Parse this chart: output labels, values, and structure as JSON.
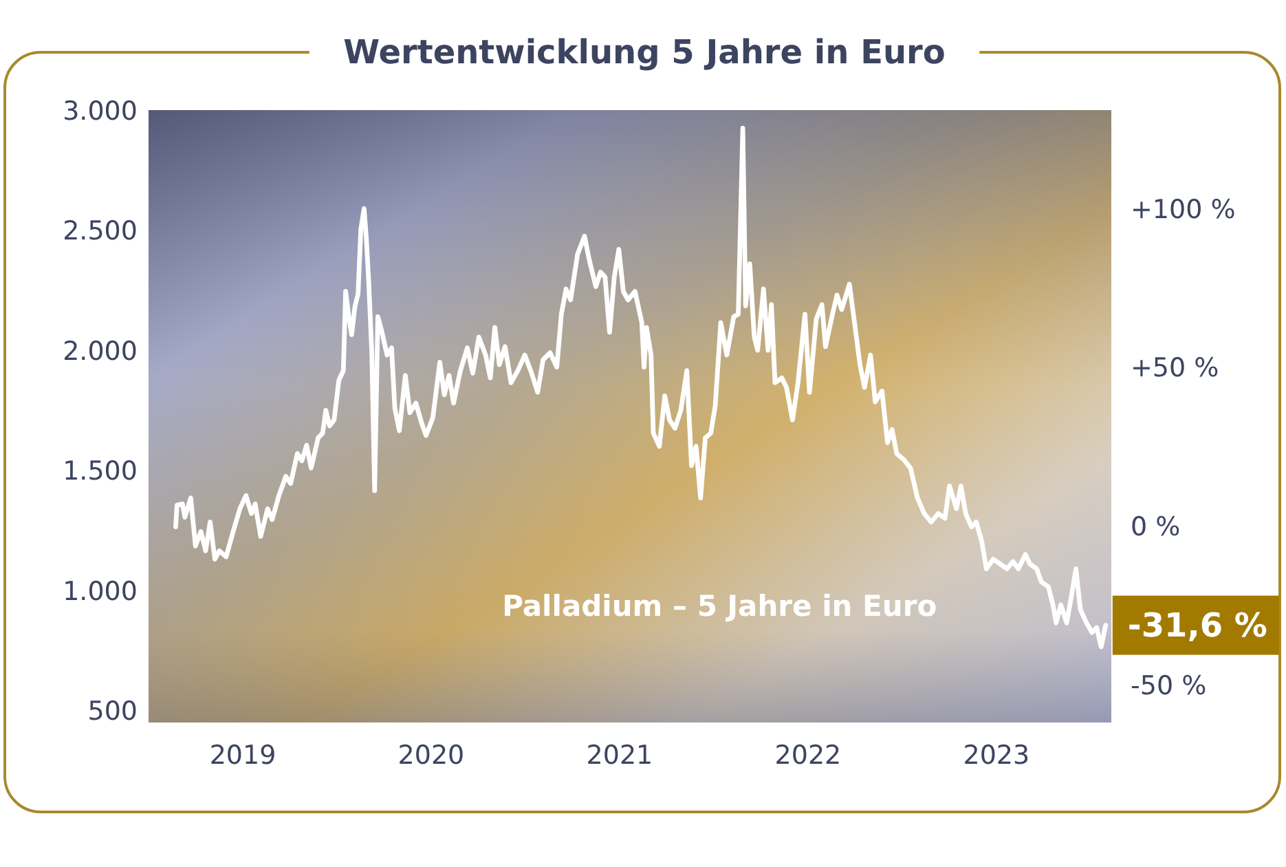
{
  "chart_data": {
    "type": "line",
    "title": "Wertentwicklung 5 Jahre in Euro",
    "x": [
      2018.644,
      2018.651,
      2018.68,
      2018.693,
      2018.724,
      2018.749,
      2018.778,
      2018.803,
      2018.827,
      2018.852,
      2018.876,
      2018.912,
      2018.949,
      2018.985,
      2019.017,
      2019.046,
      2019.066,
      2019.095,
      2019.132,
      2019.156,
      2019.192,
      2019.229,
      2019.254,
      2019.29,
      2019.314,
      2019.339,
      2019.363,
      2019.4,
      2019.424,
      2019.441,
      2019.461,
      2019.485,
      2019.51,
      2019.534,
      2019.546,
      2019.563,
      2019.578,
      2019.595,
      2019.612,
      2019.627,
      2019.644,
      2019.656,
      2019.668,
      2019.685,
      2019.7,
      2019.717,
      2019.736,
      2019.766,
      2019.79,
      2019.807,
      2019.831,
      2019.863,
      2019.887,
      2019.919,
      2019.948,
      2019.973,
      2020.009,
      2020.046,
      2020.07,
      2020.095,
      2020.119,
      2020.155,
      2020.192,
      2020.221,
      2020.253,
      2020.289,
      2020.314,
      2020.338,
      2020.362,
      2020.392,
      2020.424,
      2020.46,
      2020.497,
      2020.533,
      2020.565,
      2020.594,
      2020.631,
      2020.667,
      2020.691,
      2020.716,
      2020.74,
      2020.777,
      2020.814,
      2020.838,
      2020.874,
      2020.899,
      2020.923,
      2020.947,
      2020.972,
      2020.996,
      2021.02,
      2021.045,
      2021.082,
      2021.118,
      2021.13,
      2021.143,
      2021.167,
      2021.179,
      2021.211,
      2021.24,
      2021.265,
      2021.294,
      2021.325,
      2021.357,
      2021.382,
      2021.406,
      2021.43,
      2021.455,
      2021.484,
      2021.508,
      2021.537,
      2021.569,
      2021.606,
      2021.63,
      2021.654,
      2021.669,
      2021.691,
      2021.715,
      2021.733,
      2021.764,
      2021.788,
      2021.806,
      2021.825,
      2021.861,
      2021.886,
      2021.918,
      2021.947,
      2021.984,
      2022.008,
      2022.044,
      2022.074,
      2022.093,
      2022.13,
      2022.154,
      2022.179,
      2022.22,
      2022.247,
      2022.276,
      2022.3,
      2022.332,
      2022.357,
      2022.393,
      2022.422,
      2022.446,
      2022.471,
      2022.508,
      2022.544,
      2022.581,
      2022.617,
      2022.654,
      2022.691,
      2022.727,
      2022.751,
      2022.788,
      2022.812,
      2022.837,
      2022.868,
      2022.893,
      2022.922,
      2022.947,
      2022.983,
      2023.02,
      2023.056,
      2023.088,
      2023.117,
      2023.154,
      2023.178,
      2023.214,
      2023.239,
      2023.276,
      2023.3,
      2023.317,
      2023.342,
      2023.373,
      2023.398,
      2023.422,
      2023.446,
      2023.478,
      2023.507,
      2023.532,
      2023.556,
      2023.58
    ],
    "series": [
      {
        "color": "#ffffff",
        "values": [
          1270,
          1360,
          1365,
          1310,
          1390,
          1190,
          1250,
          1170,
          1290,
          1135,
          1170,
          1145,
          1250,
          1345,
          1400,
          1325,
          1365,
          1230,
          1345,
          1300,
          1400,
          1480,
          1450,
          1575,
          1545,
          1610,
          1515,
          1640,
          1660,
          1755,
          1690,
          1715,
          1880,
          1920,
          2250,
          2145,
          2070,
          2185,
          2240,
          2510,
          2595,
          2470,
          2300,
          1995,
          1420,
          2145,
          2090,
          1985,
          2015,
          1765,
          1670,
          1900,
          1745,
          1785,
          1705,
          1650,
          1725,
          1955,
          1820,
          1900,
          1785,
          1920,
          2015,
          1910,
          2060,
          1985,
          1890,
          2100,
          1945,
          2020,
          1870,
          1920,
          1985,
          1910,
          1830,
          1965,
          1995,
          1935,
          2155,
          2260,
          2215,
          2405,
          2480,
          2385,
          2270,
          2330,
          2310,
          2080,
          2310,
          2425,
          2250,
          2215,
          2250,
          2120,
          1935,
          2100,
          1985,
          1660,
          1605,
          1815,
          1715,
          1680,
          1755,
          1920,
          1525,
          1605,
          1390,
          1640,
          1660,
          1775,
          2120,
          1985,
          2145,
          2155,
          2930,
          2190,
          2365,
          2060,
          2005,
          2260,
          2005,
          2195,
          1870,
          1890,
          1850,
          1715,
          1870,
          2155,
          1830,
          2135,
          2195,
          2020,
          2155,
          2235,
          2175,
          2280,
          2120,
          1945,
          1850,
          1985,
          1790,
          1835,
          1620,
          1675,
          1575,
          1550,
          1515,
          1390,
          1325,
          1290,
          1325,
          1305,
          1440,
          1345,
          1440,
          1325,
          1270,
          1290,
          1210,
          1095,
          1135,
          1115,
          1095,
          1125,
          1095,
          1155,
          1115,
          1095,
          1040,
          1020,
          945,
          870,
          945,
          870,
          980,
          1095,
          925,
          870,
          830,
          850,
          770,
          860
        ]
      }
    ],
    "xlim": [
      2018.5,
      2023.61
    ],
    "xticks": [
      2019,
      2020,
      2021,
      2022,
      2023
    ],
    "ylim": [
      455,
      3005
    ],
    "yticks": [
      500,
      {
        "value": 1000,
        "label": "1.000"
      },
      {
        "value": 1500,
        "label": "1.500"
      },
      {
        "value": 2000,
        "label": "2.000"
      },
      {
        "value": 2500,
        "label": "2.500"
      },
      {
        "value": 3000,
        "label": "3.000"
      }
    ],
    "y2lim": [
      -61.6,
      131.4
    ],
    "y2ticks": [
      {
        "value": -50,
        "label": "-50 %"
      },
      {
        "value": 0,
        "label": "0 %"
      },
      {
        "value": 50,
        "label": "+50 %"
      },
      {
        "value": 100,
        "label": "+100 %"
      }
    ],
    "annotations": [
      "Palladium – 5 Jahre in Euro",
      {
        "text": "-31,6 %",
        "x": 2023.58,
        "y": 860
      }
    ]
  }
}
